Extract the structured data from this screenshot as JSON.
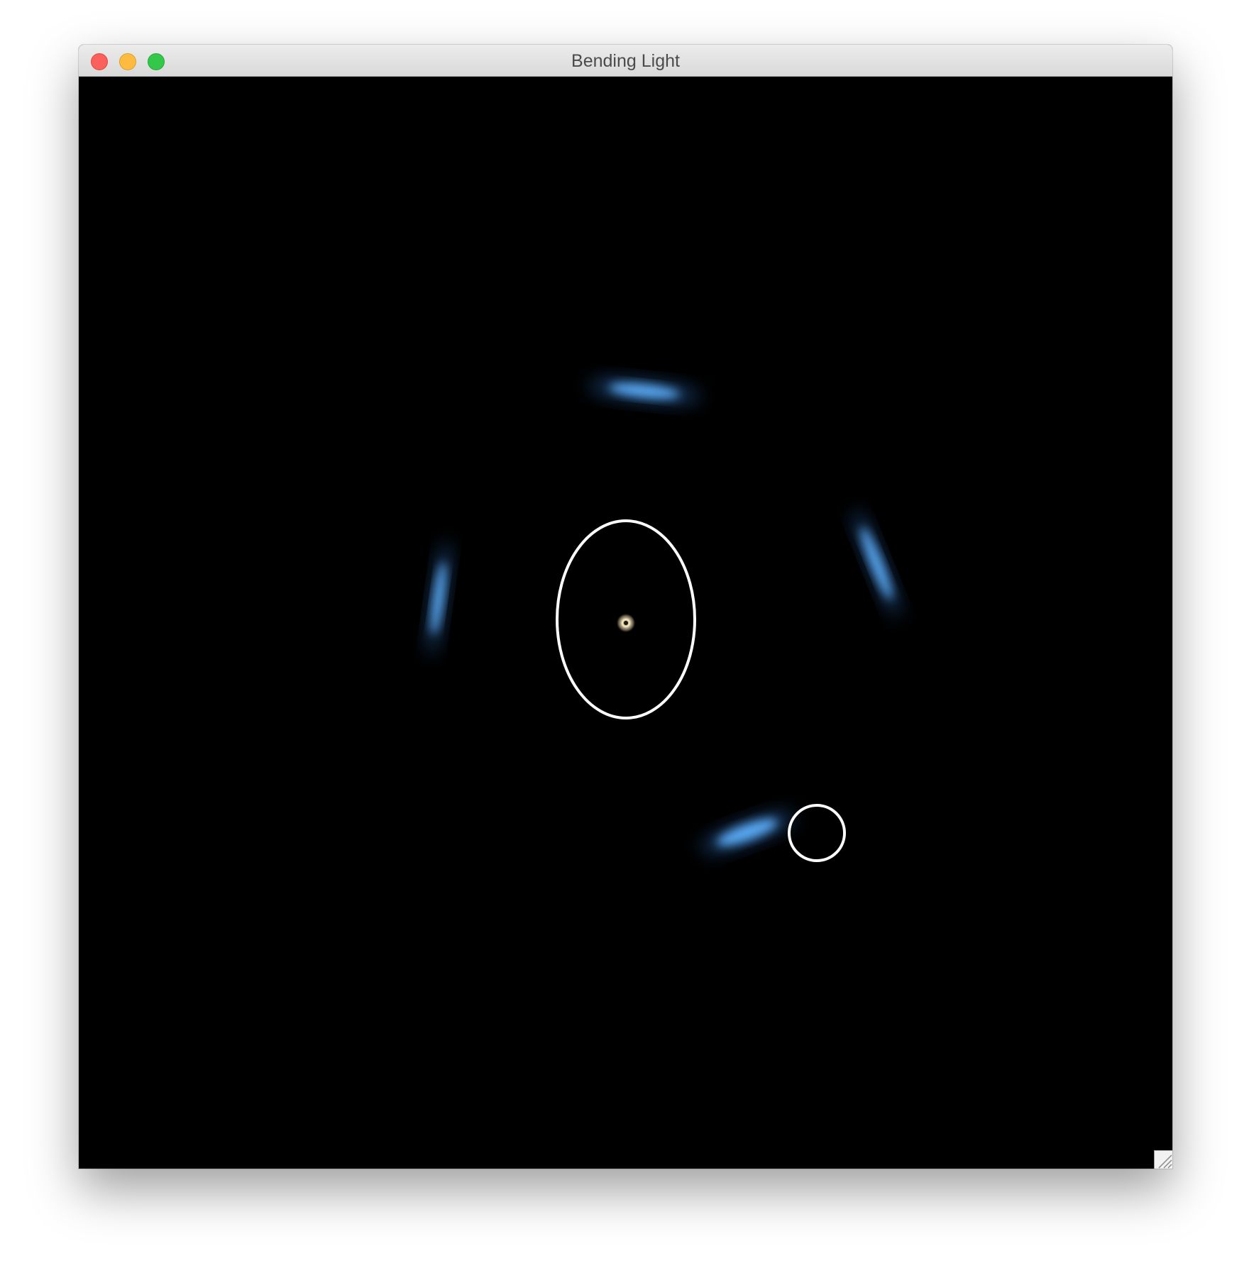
{
  "window": {
    "title": "Bending Light",
    "controls": [
      "close",
      "minimize",
      "zoom"
    ]
  },
  "scene": {
    "background": "#000000",
    "image_color": "#5aaaf5",
    "outline_color": "#ffffff",
    "lensed_images": [
      "top",
      "right",
      "left",
      "bottom"
    ],
    "outlines": [
      "lens-ellipse",
      "source-circle"
    ],
    "center_point": "lens-center"
  }
}
